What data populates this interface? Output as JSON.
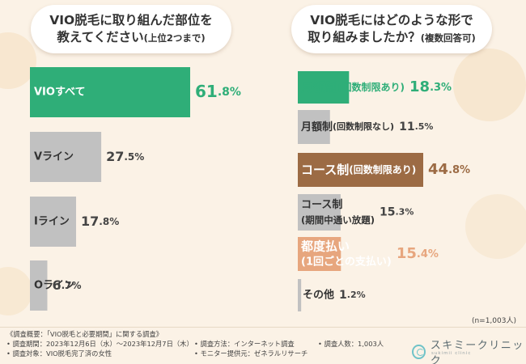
{
  "left": {
    "title_line1": "VIO脱毛に取り組んだ部位を",
    "title_line2": "教えてください",
    "title_note": "(上位2つまで)"
  },
  "right": {
    "title_line1": "VIO脱毛にはどのような形で",
    "title_line2": "取り組みましたか？",
    "title_note": "(複数回答可)"
  },
  "colors": {
    "green": "#2fae78",
    "gray": "#c1c1c1",
    "brown": "#9c6b44",
    "peach": "#e7a67e",
    "text": "#333333"
  },
  "chart_data": [
    {
      "type": "bar",
      "orientation": "horizontal",
      "categories": [
        "VIOすべて",
        "Vライン",
        "Iライン",
        "Oライン"
      ],
      "values": [
        61.8,
        27.5,
        17.8,
        6.7
      ],
      "value_labels": [
        "61.8%",
        "27.5%",
        "17.8%",
        "6.7%"
      ],
      "colors": [
        "green",
        "gray",
        "gray",
        "gray"
      ],
      "unit": "%"
    },
    {
      "type": "bar",
      "orientation": "horizontal",
      "categories": [
        [
          "月額制",
          "(回数制限あり)"
        ],
        [
          "月額制",
          "(回数制限なし)"
        ],
        [
          "コース制",
          "(回数制限あり)"
        ],
        [
          "コース制",
          "(期間中通い放題)"
        ],
        [
          "都度払い",
          "(1回ごとの支払い)"
        ],
        [
          "その他"
        ]
      ],
      "values": [
        18.3,
        11.5,
        44.8,
        15.3,
        15.4,
        1.2
      ],
      "value_labels": [
        "18.3%",
        "11.5%",
        "44.8%",
        "15.3%",
        "15.4%",
        "1.2%"
      ],
      "colors": [
        "green",
        "gray",
        "brown",
        "gray",
        "peach",
        "gray"
      ],
      "unit": "%"
    }
  ],
  "sample_note": "(n=1,003人)",
  "footer": {
    "overview": "《調査概要：「VIO脱毛と必要期間」に関する調査》",
    "period": "• 調査期間：2023年12月6日（水）～2023年12月7日（木）",
    "target": "• 調査対象：VIO脱毛完了済の女性",
    "method": "• 調査方法：インターネット調査",
    "provider": "• モニター提供元：ゼネラルリサーチ",
    "respondents": "• 調査人数：1,003人"
  },
  "logo": {
    "name": "スキミークリニック",
    "sub": "sukimii clinic"
  }
}
